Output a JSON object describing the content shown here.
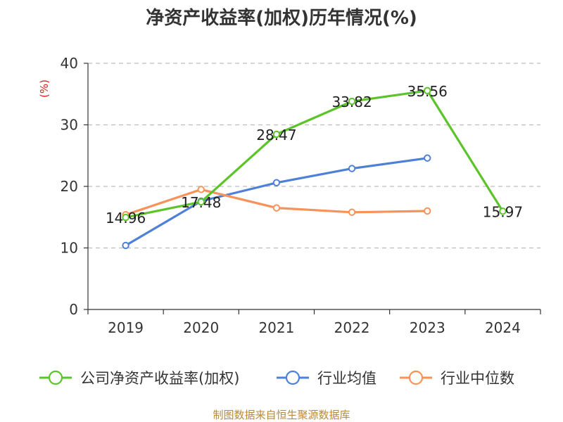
{
  "chart_data": {
    "type": "line",
    "title": "净资产收益率(加权)历年情况(%)",
    "ylabel": "(%)",
    "xlabel": "",
    "categories": [
      "2019",
      "2020",
      "2021",
      "2022",
      "2023",
      "2024"
    ],
    "ylim": [
      0,
      40
    ],
    "yticks": [
      0,
      10,
      20,
      30,
      40
    ],
    "grid": true,
    "legend_position": "bottom",
    "series": [
      {
        "name": "公司净资产收益率(加权)",
        "color": "#5cc42a",
        "values": [
          14.96,
          17.48,
          28.47,
          33.82,
          35.56,
          15.97
        ],
        "labels": [
          "14.96",
          "17.48",
          "28.47",
          "33.82",
          "35.56",
          "15.97"
        ]
      },
      {
        "name": "行业均值",
        "color": "#4f80d8",
        "values": [
          10.4,
          17.6,
          20.6,
          22.9,
          24.6,
          null
        ]
      },
      {
        "name": "行业中位数",
        "color": "#f7935a",
        "values": [
          15.4,
          19.5,
          16.5,
          15.8,
          16.0,
          null
        ]
      }
    ],
    "source": "制图数据来自恒生聚源数据库"
  }
}
